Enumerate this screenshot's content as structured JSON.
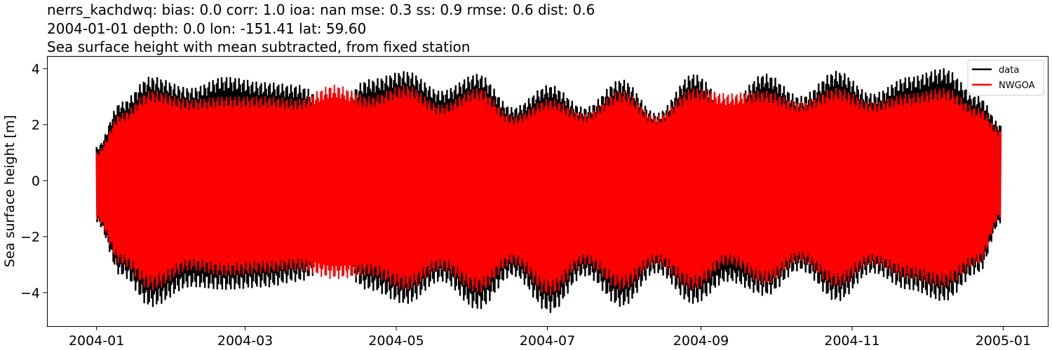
{
  "chart_data": {
    "type": "line",
    "title_lines": [
      "nerrs_kachdwq: bias: 0.0  corr: 1.0  ioa: nan  mse: 0.3  ss: 0.9  rmse: 0.6  dist: 0.6",
      "2004-01-01 depth: 0.0 lon: -151.41 lat: 59.60",
      "Sea surface height with mean subtracted, from fixed station"
    ],
    "ylabel": "Sea surface height [m]",
    "xlabel": "",
    "x_ticks": [
      "2004-01",
      "2004-03",
      "2004-05",
      "2004-07",
      "2004-09",
      "2004-11",
      "2005-01"
    ],
    "y_ticks": [
      "−4",
      "−2",
      "0",
      "2",
      "4"
    ],
    "xlim": [
      "2003-12-12",
      "2005-01-19"
    ],
    "ylim": [
      -5.2,
      4.45
    ],
    "grid": false,
    "legend_position": "upper right",
    "x_range": [
      "2004-01-01",
      "2004-12-31"
    ],
    "envelope_note": "tidal signal; spring/neap envelope amplitude",
    "series": [
      {
        "name": "data",
        "color": "#000000",
        "envelope_dates": [
          "2004-01-01",
          "2004-01-11",
          "2004-01-23",
          "2004-02-08",
          "2004-02-22",
          "2004-03-09",
          "2004-03-22",
          "2004-04-06",
          "2004-04-20",
          "2004-05-05",
          "2004-05-19",
          "2004-06-03",
          "2004-06-17",
          "2004-07-02",
          "2004-07-16",
          "2004-07-31",
          "2004-08-14",
          "2004-08-29",
          "2004-09-12",
          "2004-09-27",
          "2004-10-11",
          "2004-10-26",
          "2004-11-09",
          "2004-11-24",
          "2004-12-08",
          "2004-12-22",
          "2004-12-31"
        ],
        "envelope_max": [
          1.2,
          2.8,
          3.7,
          3.3,
          3.7,
          3.5,
          3.4,
          2.7,
          3.6,
          3.9,
          3.2,
          3.8,
          2.6,
          3.4,
          2.6,
          3.6,
          2.4,
          3.8,
          2.8,
          3.8,
          3.0,
          3.9,
          3.1,
          3.7,
          4.0,
          3.0,
          2.0
        ],
        "envelope_min": [
          -1.5,
          -3.4,
          -4.5,
          -3.8,
          -3.9,
          -3.8,
          -3.6,
          -3.0,
          -3.9,
          -4.4,
          -3.6,
          -4.6,
          -3.4,
          -4.7,
          -3.4,
          -4.5,
          -3.3,
          -4.4,
          -3.6,
          -4.1,
          -3.2,
          -4.3,
          -3.3,
          -3.9,
          -4.3,
          -3.3,
          -1.5
        ]
      },
      {
        "name": "NWGOA",
        "color": "#ff0000",
        "envelope_dates": [
          "2004-01-01",
          "2004-01-11",
          "2004-01-23",
          "2004-02-08",
          "2004-02-22",
          "2004-03-09",
          "2004-03-22",
          "2004-04-06",
          "2004-04-20",
          "2004-05-05",
          "2004-05-19",
          "2004-06-03",
          "2004-06-17",
          "2004-07-02",
          "2004-07-16",
          "2004-07-31",
          "2004-08-14",
          "2004-08-29",
          "2004-09-12",
          "2004-09-27",
          "2004-10-11",
          "2004-10-26",
          "2004-11-09",
          "2004-11-24",
          "2004-12-08",
          "2004-12-22",
          "2004-12-31"
        ],
        "envelope_max": [
          1.0,
          2.4,
          3.2,
          2.9,
          3.0,
          3.0,
          2.9,
          3.4,
          3.0,
          3.4,
          2.7,
          3.3,
          2.3,
          2.9,
          2.4,
          3.2,
          2.3,
          3.3,
          3.1,
          3.2,
          2.8,
          3.3,
          2.8,
          3.1,
          3.3,
          2.6,
          1.8
        ],
        "envelope_min": [
          -1.4,
          -3.0,
          -3.9,
          -3.2,
          -3.4,
          -3.3,
          -3.2,
          -3.5,
          -3.4,
          -3.9,
          -3.2,
          -4.0,
          -3.0,
          -4.1,
          -3.0,
          -3.9,
          -3.0,
          -3.9,
          -3.0,
          -3.7,
          -2.9,
          -3.8,
          -3.0,
          -3.5,
          -3.8,
          -3.0,
          -1.3
        ]
      }
    ]
  }
}
